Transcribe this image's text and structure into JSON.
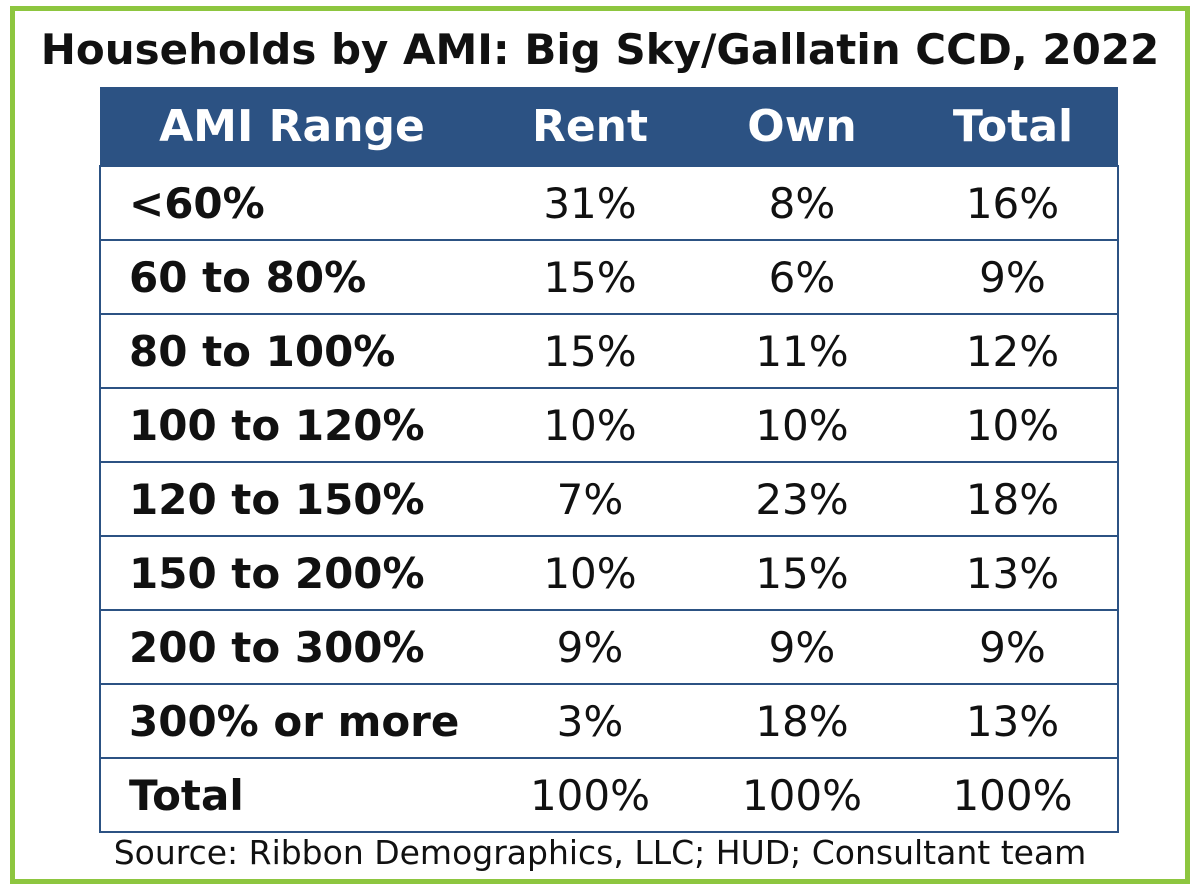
{
  "chart_data": {
    "type": "table",
    "title": "Households by AMI:  Big Sky/Gallatin CCD, 2022",
    "columns": [
      "AMI Range",
      "Rent",
      "Own",
      "Total"
    ],
    "rows": [
      {
        "range": "<60%",
        "rent": "31%",
        "own": "8%",
        "total": "16%"
      },
      {
        "range": "60 to 80%",
        "rent": "15%",
        "own": "6%",
        "total": "9%"
      },
      {
        "range": "80 to 100%",
        "rent": "15%",
        "own": "11%",
        "total": "12%"
      },
      {
        "range": "100 to 120%",
        "rent": "10%",
        "own": "10%",
        "total": "10%"
      },
      {
        "range": "120 to 150%",
        "rent": "7%",
        "own": "23%",
        "total": "18%"
      },
      {
        "range": "150 to 200%",
        "rent": "10%",
        "own": "15%",
        "total": "13%"
      },
      {
        "range": "200 to 300%",
        "rent": "9%",
        "own": "9%",
        "total": "9%"
      },
      {
        "range": "300% or more",
        "rent": "3%",
        "own": "18%",
        "total": "13%"
      },
      {
        "range": "Total",
        "rent": "100%",
        "own": "100%",
        "total": "100%"
      }
    ],
    "source": "Source: Ribbon Demographics, LLC; HUD; Consultant team"
  },
  "colors": {
    "border": "#8dc63f",
    "header_bg": "#2c5283",
    "header_text": "#ffffff"
  }
}
